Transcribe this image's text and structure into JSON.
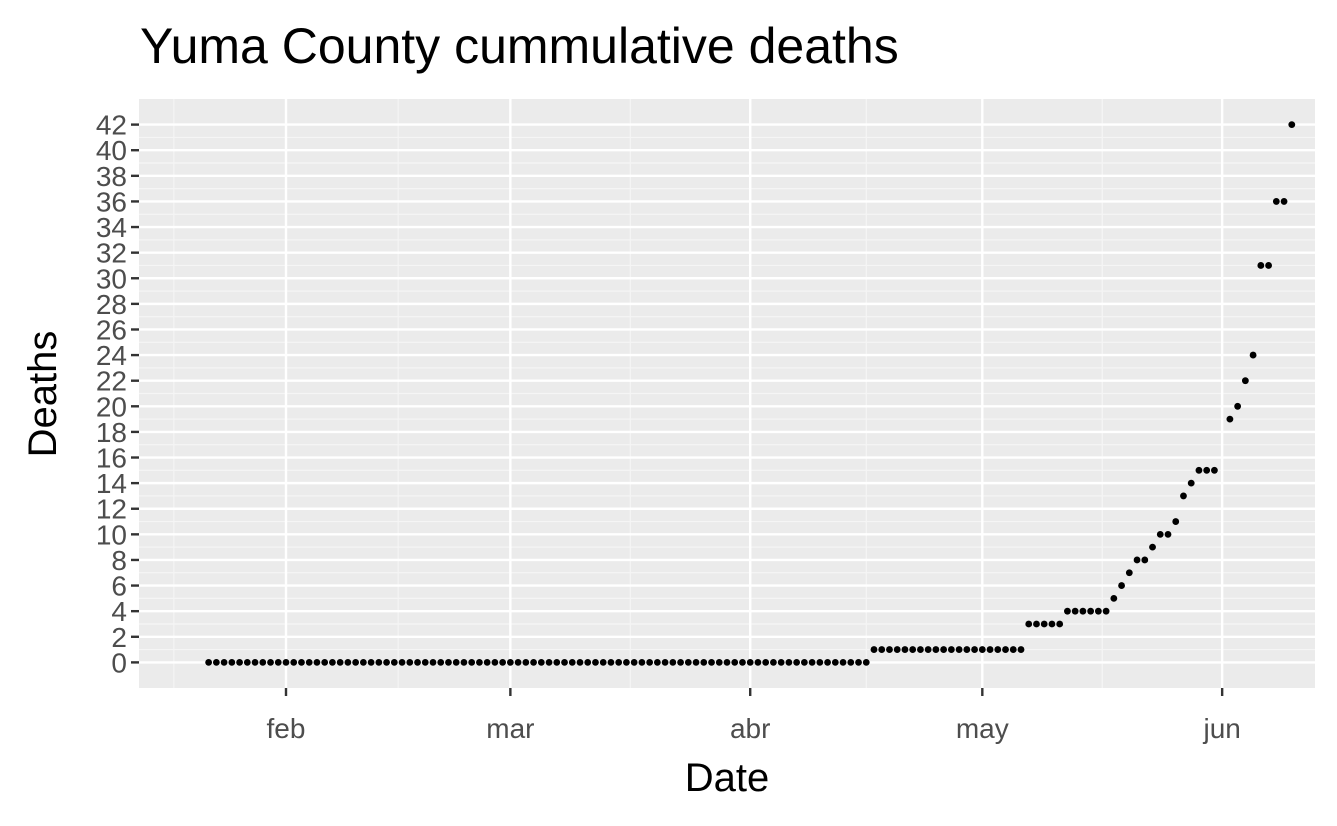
{
  "chart_data": {
    "type": "scatter",
    "title": "Yuma County cummulative deaths",
    "xlabel": "Date",
    "ylabel": "Deaths",
    "x_axis": {
      "type": "date",
      "range": [
        "2020-01-13",
        "2020-06-13"
      ],
      "ticks": [
        {
          "date": "2020-02-01",
          "label": "feb"
        },
        {
          "date": "2020-03-01",
          "label": "mar"
        },
        {
          "date": "2020-04-01",
          "label": "abr"
        },
        {
          "date": "2020-05-01",
          "label": "may"
        },
        {
          "date": "2020-06-01",
          "label": "jun"
        }
      ]
    },
    "y_axis": {
      "range": [
        -2,
        44
      ],
      "ticks": [
        0,
        2,
        4,
        6,
        8,
        10,
        12,
        14,
        16,
        18,
        20,
        22,
        24,
        26,
        28,
        30,
        32,
        34,
        36,
        38,
        40,
        42
      ]
    },
    "grid": true,
    "series": [
      {
        "points": [
          {
            "x": "2020-01-22",
            "y": 0
          },
          {
            "x": "2020-01-23",
            "y": 0
          },
          {
            "x": "2020-01-24",
            "y": 0
          },
          {
            "x": "2020-01-25",
            "y": 0
          },
          {
            "x": "2020-01-26",
            "y": 0
          },
          {
            "x": "2020-01-27",
            "y": 0
          },
          {
            "x": "2020-01-28",
            "y": 0
          },
          {
            "x": "2020-01-29",
            "y": 0
          },
          {
            "x": "2020-01-30",
            "y": 0
          },
          {
            "x": "2020-01-31",
            "y": 0
          },
          {
            "x": "2020-02-01",
            "y": 0
          },
          {
            "x": "2020-02-02",
            "y": 0
          },
          {
            "x": "2020-02-03",
            "y": 0
          },
          {
            "x": "2020-02-04",
            "y": 0
          },
          {
            "x": "2020-02-05",
            "y": 0
          },
          {
            "x": "2020-02-06",
            "y": 0
          },
          {
            "x": "2020-02-07",
            "y": 0
          },
          {
            "x": "2020-02-08",
            "y": 0
          },
          {
            "x": "2020-02-09",
            "y": 0
          },
          {
            "x": "2020-02-10",
            "y": 0
          },
          {
            "x": "2020-02-11",
            "y": 0
          },
          {
            "x": "2020-02-12",
            "y": 0
          },
          {
            "x": "2020-02-13",
            "y": 0
          },
          {
            "x": "2020-02-14",
            "y": 0
          },
          {
            "x": "2020-02-15",
            "y": 0
          },
          {
            "x": "2020-02-16",
            "y": 0
          },
          {
            "x": "2020-02-17",
            "y": 0
          },
          {
            "x": "2020-02-18",
            "y": 0
          },
          {
            "x": "2020-02-19",
            "y": 0
          },
          {
            "x": "2020-02-20",
            "y": 0
          },
          {
            "x": "2020-02-21",
            "y": 0
          },
          {
            "x": "2020-02-22",
            "y": 0
          },
          {
            "x": "2020-02-23",
            "y": 0
          },
          {
            "x": "2020-02-24",
            "y": 0
          },
          {
            "x": "2020-02-25",
            "y": 0
          },
          {
            "x": "2020-02-26",
            "y": 0
          },
          {
            "x": "2020-02-27",
            "y": 0
          },
          {
            "x": "2020-02-28",
            "y": 0
          },
          {
            "x": "2020-02-29",
            "y": 0
          },
          {
            "x": "2020-03-01",
            "y": 0
          },
          {
            "x": "2020-03-02",
            "y": 0
          },
          {
            "x": "2020-03-03",
            "y": 0
          },
          {
            "x": "2020-03-04",
            "y": 0
          },
          {
            "x": "2020-03-05",
            "y": 0
          },
          {
            "x": "2020-03-06",
            "y": 0
          },
          {
            "x": "2020-03-07",
            "y": 0
          },
          {
            "x": "2020-03-08",
            "y": 0
          },
          {
            "x": "2020-03-09",
            "y": 0
          },
          {
            "x": "2020-03-10",
            "y": 0
          },
          {
            "x": "2020-03-11",
            "y": 0
          },
          {
            "x": "2020-03-12",
            "y": 0
          },
          {
            "x": "2020-03-13",
            "y": 0
          },
          {
            "x": "2020-03-14",
            "y": 0
          },
          {
            "x": "2020-03-15",
            "y": 0
          },
          {
            "x": "2020-03-16",
            "y": 0
          },
          {
            "x": "2020-03-17",
            "y": 0
          },
          {
            "x": "2020-03-18",
            "y": 0
          },
          {
            "x": "2020-03-19",
            "y": 0
          },
          {
            "x": "2020-03-20",
            "y": 0
          },
          {
            "x": "2020-03-21",
            "y": 0
          },
          {
            "x": "2020-03-22",
            "y": 0
          },
          {
            "x": "2020-03-23",
            "y": 0
          },
          {
            "x": "2020-03-24",
            "y": 0
          },
          {
            "x": "2020-03-25",
            "y": 0
          },
          {
            "x": "2020-03-26",
            "y": 0
          },
          {
            "x": "2020-03-27",
            "y": 0
          },
          {
            "x": "2020-03-28",
            "y": 0
          },
          {
            "x": "2020-03-29",
            "y": 0
          },
          {
            "x": "2020-03-30",
            "y": 0
          },
          {
            "x": "2020-03-31",
            "y": 0
          },
          {
            "x": "2020-04-01",
            "y": 0
          },
          {
            "x": "2020-04-02",
            "y": 0
          },
          {
            "x": "2020-04-03",
            "y": 0
          },
          {
            "x": "2020-04-04",
            "y": 0
          },
          {
            "x": "2020-04-05",
            "y": 0
          },
          {
            "x": "2020-04-06",
            "y": 0
          },
          {
            "x": "2020-04-07",
            "y": 0
          },
          {
            "x": "2020-04-08",
            "y": 0
          },
          {
            "x": "2020-04-09",
            "y": 0
          },
          {
            "x": "2020-04-10",
            "y": 0
          },
          {
            "x": "2020-04-11",
            "y": 0
          },
          {
            "x": "2020-04-12",
            "y": 0
          },
          {
            "x": "2020-04-13",
            "y": 0
          },
          {
            "x": "2020-04-14",
            "y": 0
          },
          {
            "x": "2020-04-15",
            "y": 0
          },
          {
            "x": "2020-04-16",
            "y": 0
          },
          {
            "x": "2020-04-17",
            "y": 1
          },
          {
            "x": "2020-04-18",
            "y": 1
          },
          {
            "x": "2020-04-19",
            "y": 1
          },
          {
            "x": "2020-04-20",
            "y": 1
          },
          {
            "x": "2020-04-21",
            "y": 1
          },
          {
            "x": "2020-04-22",
            "y": 1
          },
          {
            "x": "2020-04-23",
            "y": 1
          },
          {
            "x": "2020-04-24",
            "y": 1
          },
          {
            "x": "2020-04-25",
            "y": 1
          },
          {
            "x": "2020-04-26",
            "y": 1
          },
          {
            "x": "2020-04-27",
            "y": 1
          },
          {
            "x": "2020-04-28",
            "y": 1
          },
          {
            "x": "2020-04-29",
            "y": 1
          },
          {
            "x": "2020-04-30",
            "y": 1
          },
          {
            "x": "2020-05-01",
            "y": 1
          },
          {
            "x": "2020-05-02",
            "y": 1
          },
          {
            "x": "2020-05-03",
            "y": 1
          },
          {
            "x": "2020-05-04",
            "y": 1
          },
          {
            "x": "2020-05-05",
            "y": 1
          },
          {
            "x": "2020-05-06",
            "y": 1
          },
          {
            "x": "2020-05-07",
            "y": 3
          },
          {
            "x": "2020-05-08",
            "y": 3
          },
          {
            "x": "2020-05-09",
            "y": 3
          },
          {
            "x": "2020-05-10",
            "y": 3
          },
          {
            "x": "2020-05-11",
            "y": 3
          },
          {
            "x": "2020-05-12",
            "y": 4
          },
          {
            "x": "2020-05-13",
            "y": 4
          },
          {
            "x": "2020-05-14",
            "y": 4
          },
          {
            "x": "2020-05-15",
            "y": 4
          },
          {
            "x": "2020-05-16",
            "y": 4
          },
          {
            "x": "2020-05-17",
            "y": 4
          },
          {
            "x": "2020-05-18",
            "y": 5
          },
          {
            "x": "2020-05-19",
            "y": 6
          },
          {
            "x": "2020-05-20",
            "y": 7
          },
          {
            "x": "2020-05-21",
            "y": 8
          },
          {
            "x": "2020-05-22",
            "y": 8
          },
          {
            "x": "2020-05-23",
            "y": 9
          },
          {
            "x": "2020-05-24",
            "y": 10
          },
          {
            "x": "2020-05-25",
            "y": 10
          },
          {
            "x": "2020-05-26",
            "y": 11
          },
          {
            "x": "2020-05-27",
            "y": 13
          },
          {
            "x": "2020-05-28",
            "y": 14
          },
          {
            "x": "2020-05-29",
            "y": 15
          },
          {
            "x": "2020-05-30",
            "y": 15
          },
          {
            "x": "2020-05-31",
            "y": 15
          },
          {
            "x": "2020-06-02",
            "y": 19
          },
          {
            "x": "2020-06-03",
            "y": 20
          },
          {
            "x": "2020-06-04",
            "y": 22
          },
          {
            "x": "2020-06-05",
            "y": 24
          },
          {
            "x": "2020-06-06",
            "y": 31
          },
          {
            "x": "2020-06-07",
            "y": 31
          },
          {
            "x": "2020-06-08",
            "y": 36
          },
          {
            "x": "2020-06-09",
            "y": 36
          },
          {
            "x": "2020-06-10",
            "y": 42
          }
        ]
      }
    ],
    "colors": {
      "panel_background": "#ebebeb",
      "grid_major": "#ffffff",
      "grid_minor": "#f5f5f5",
      "point": "#000000",
      "tick_label": "#4d4d4d",
      "text": "#000000"
    }
  }
}
